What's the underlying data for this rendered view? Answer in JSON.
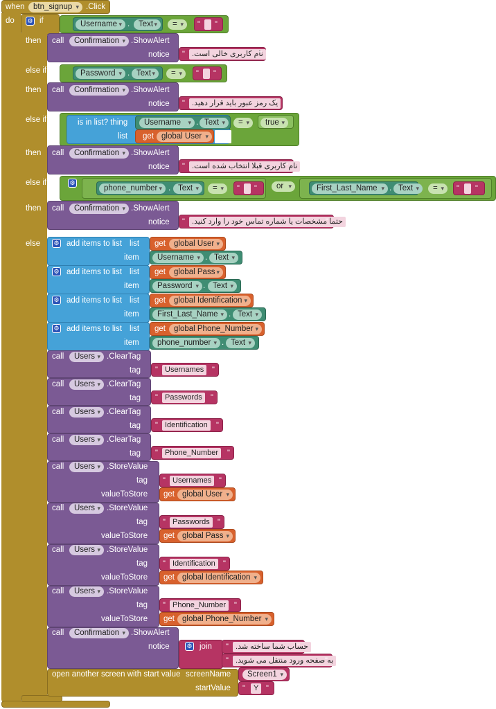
{
  "event": {
    "when": "when",
    "component": "btn_signup",
    "event_name": ".Click",
    "do": "do"
  },
  "kw": {
    "if": "if",
    "then": "then",
    "else_if": "else if",
    "else": "else",
    "call": "call",
    "notice": "notice",
    "or": "or",
    "get": "get",
    "list": "list",
    "item": "item",
    "tag": "tag",
    "value_to_store": "valueToStore",
    "join": "join",
    "add_items": "add items to list",
    "is_in_list": "is in list? thing",
    "screen_name": "screenName",
    "start_value": "startValue",
    "open_screen": "open another screen with start value",
    "dot": ".",
    "equals": "=",
    "q": "\""
  },
  "components": {
    "confirmation": "Confirmation",
    "show_alert": ".ShowAlert",
    "users": "Users",
    "clear_tag": ".ClearTag",
    "store_value": ".StoreValue",
    "username": "Username",
    "password": "Password",
    "phone_number": "phone_number",
    "first_last_name": "First_Last_Name",
    "text_prop": "Text",
    "true": "true"
  },
  "globals": {
    "user": "global User",
    "pass": "global Pass",
    "identification": "global Identification",
    "phone": "global Phone_Number"
  },
  "strings": {
    "empty_username": ".نام کاربری خالی است",
    "empty_password": ".یک رمز عبور باید قرار دهید",
    "taken_username": ".نام کاربری قبلا انتخاب شده است",
    "fill_info": ".حتما مشخصات یا شماره تماس خود را وارد کنید",
    "tag_usernames": "Usernames",
    "tag_passwords": "Passwords",
    "tag_identification": "Identification",
    "tag_phone": "Phone_Number",
    "account_created": ".حساب شما ساخته شد",
    "go_login": ".به صفحه ورود منتقل می شوید",
    "screen1": "Screen1",
    "y": "Y"
  }
}
